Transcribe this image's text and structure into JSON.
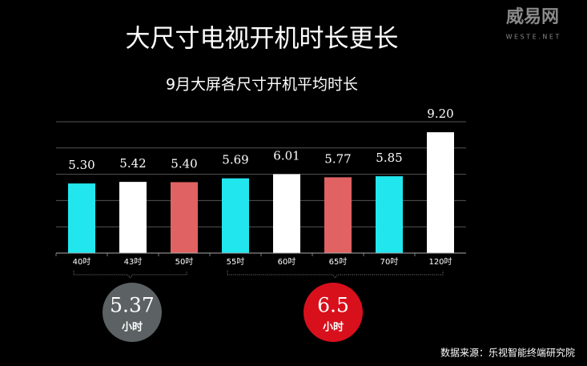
{
  "chart_data": {
    "type": "bar",
    "title": "大尺寸电视开机时长更长",
    "subtitle": "9月大屏各尺寸开机平均时长",
    "categories": [
      "40吋",
      "43吋",
      "50吋",
      "55吋",
      "60吋",
      "65吋",
      "70吋",
      "120吋"
    ],
    "values": [
      5.3,
      5.42,
      5.4,
      5.69,
      6.01,
      5.77,
      5.85,
      9.2
    ],
    "value_labels": [
      "5.30",
      "5.42",
      "5.40",
      "5.69",
      "6.01",
      "5.77",
      "5.85",
      "9.20"
    ],
    "colors": [
      "#22e6ee",
      "#ffffff",
      "#e06262",
      "#22e6ee",
      "#ffffff",
      "#e06262",
      "#22e6ee",
      "#ffffff"
    ],
    "ylim": [
      0,
      10
    ],
    "yticks": [
      0,
      2,
      4,
      6,
      8,
      10
    ],
    "grid": true,
    "groups": [
      {
        "value": 5.37,
        "unit": "小时",
        "color": "#5c6263"
      },
      {
        "value": 6.5,
        "unit": "小时",
        "color": "#d8101c"
      }
    ],
    "source": "数据来源：乐视智能终端研究院",
    "logo": "威易网",
    "logo_url": "W E S T E . N E T"
  }
}
